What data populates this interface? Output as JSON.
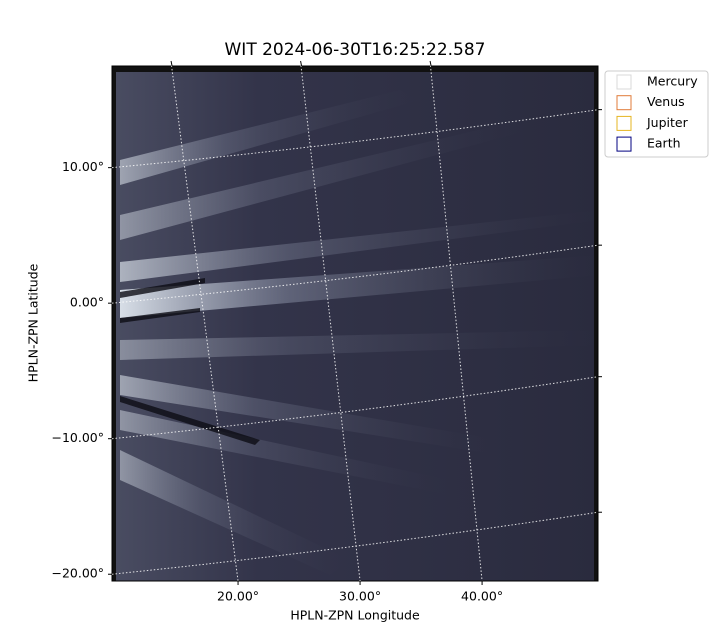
{
  "chart_data": {
    "type": "image",
    "title": "WIT 2024-06-30T16:25:22.587",
    "xlabel": "HPLN-ZPN Longitude",
    "ylabel": "HPLN-ZPN Latitude",
    "xlim": [
      9.67,
      49.5
    ],
    "ylim": [
      -20.5,
      17.5
    ],
    "xticks": [
      {
        "value": 20,
        "label": "20.00°"
      },
      {
        "value": 30,
        "label": "30.00°"
      },
      {
        "value": 40,
        "label": "40.00°"
      }
    ],
    "yticks": [
      {
        "value": 10,
        "label": "10.00°"
      },
      {
        "value": 0,
        "label": "0.00°"
      },
      {
        "value": -10,
        "label": "−10.00°"
      },
      {
        "value": -20,
        "label": "−20.00°"
      }
    ],
    "grid": true,
    "legend": "upper right",
    "series": [
      {
        "name": "Mercury",
        "color": "#d8d8d8"
      },
      {
        "name": "Venus",
        "color": "#e07b39"
      },
      {
        "name": "Jupiter",
        "color": "#e6b422"
      },
      {
        "name": "Earth",
        "color": "#000080"
      }
    ]
  }
}
